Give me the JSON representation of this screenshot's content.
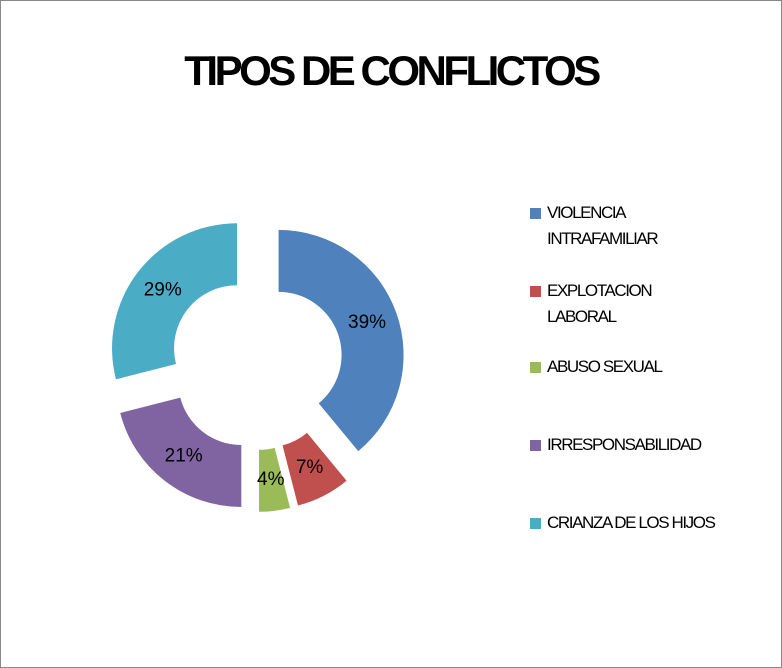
{
  "chart_data": {
    "type": "donut",
    "title": "TIPOS DE CONFLICTOS",
    "categories": [
      "VIOLENCIA INTRAFAMILIAR",
      "EXPLOTACION LABORAL",
      "ABUSO SEXUAL",
      "IRRESPONSABILIDAD",
      "CRIANZA DE LOS HIJOS"
    ],
    "values": [
      39,
      7,
      4,
      21,
      29
    ],
    "value_labels": [
      "39%",
      "7%",
      "4%",
      "21%",
      "29%"
    ],
    "colors": [
      "#4f81bd",
      "#c0504d",
      "#9bbb59",
      "#8064a2",
      "#4bacc6"
    ],
    "legend": "right"
  }
}
